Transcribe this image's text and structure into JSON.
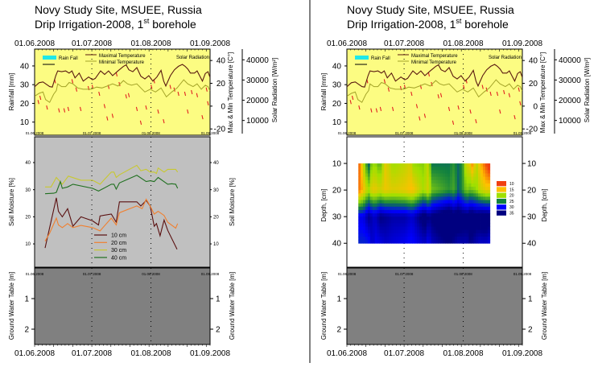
{
  "header": {
    "title_line1": "Novy Study Site, MSUEE, Russia",
    "title_line2_main": "Drip Irrigation-2008, 1",
    "title_line2_sup": "st",
    "title_line2_end": " borehole"
  },
  "colors": {
    "weather_bg": "#fcfc82",
    "soil_bg": "#c0c0c0",
    "ground_bg": "#808080",
    "max_temp": "#5a1a10",
    "min_temp": "#a4a428",
    "solar": "#e02020",
    "rain": "#20e8e8",
    "sm10": "#5a1010",
    "sm20": "#f08030",
    "sm30": "#c8c830",
    "sm40": "#207020"
  },
  "x_axis": {
    "ticks": [
      "01.06.2008",
      "01.07.2008",
      "01.08.2008",
      "01.09.2008"
    ],
    "tick_days": [
      0,
      30,
      61,
      92
    ],
    "range_days": [
      0,
      92
    ]
  },
  "chart_data": [
    {
      "id": "weather",
      "type": "line",
      "title": "Novy Study Site, MSUEE, Russia — Drip Irrigation-2008, 1st borehole",
      "xlabel": "",
      "axes": {
        "rainfall": {
          "label": "Rainfall [mm]",
          "ticks": [
            10,
            20,
            30,
            40
          ],
          "range": [
            3,
            49
          ]
        },
        "temperature": {
          "label": "Max & Min Temperature [C°]",
          "ticks": [
            -20,
            0,
            20,
            40
          ],
          "range": [
            -25.5,
            50
          ]
        },
        "solar": {
          "label": "Solar Radiation [W/m²]",
          "ticks": [
            10000,
            20000,
            30000,
            40000
          ],
          "range": [
            2700,
            45300
          ]
        }
      },
      "legend": {
        "rain": "Rain Fall",
        "max": "Maximal Temperature",
        "min": "Minimal Temperature",
        "solar": "Solar Radiation"
      },
      "series": [
        {
          "name": "Maximal Temperature",
          "axis": "temperature",
          "day": [
            0.1,
            2.3,
            4.4,
            7.9,
            9.3,
            11.1,
            12.1,
            14.2,
            16.3,
            18.1,
            19.6,
            21.2,
            23.4,
            25.5,
            28.3,
            30.4,
            31.8,
            34.6,
            36.7,
            38.8,
            40.9,
            43.7,
            46.6,
            48,
            49.4,
            51.5,
            53.6,
            55.7,
            57.8,
            59.9,
            62,
            64.1,
            66.3,
            67.7,
            68.8,
            71.2,
            73.3,
            75.4,
            77.5,
            78.9,
            80.3,
            81.7,
            83.8,
            85.2,
            88,
            89.5,
            90.9,
            91.9
          ],
          "values": [
            17.1,
            20.5,
            21.2,
            17.1,
            16.7,
            26.7,
            30.9,
            30.2,
            30.9,
            29,
            30.9,
            24.8,
            29,
            21.9,
            25.5,
            23.1,
            24.3,
            30.9,
            27.8,
            30.9,
            26.7,
            30.9,
            34.9,
            36.2,
            31.9,
            30.2,
            33.8,
            26.2,
            23.8,
            26.7,
            21.9,
            25.5,
            31.4,
            21.9,
            17.6,
            26.7,
            31.9,
            34.9,
            36.6,
            34.9,
            32.6,
            29,
            29,
            30.9,
            21.9,
            28.6,
            30.2,
            25.5
          ]
        },
        {
          "name": "Minimal Temperature",
          "axis": "temperature",
          "day": [
            0.1,
            2.3,
            4.4,
            5.8,
            7.9,
            10,
            11.4,
            12.1,
            14.2,
            16.3,
            18.1,
            20.1,
            22.6,
            25.5,
            29.7,
            32.5,
            35.3,
            38.1,
            40.9,
            43.7,
            46.6,
            48.7,
            50.8,
            53.6,
            55.7,
            57.8,
            60.6,
            63.4,
            66.3,
            69.1,
            71.9,
            74.7,
            78.2,
            80.3,
            83.1,
            85.2,
            87.4,
            89.5,
            90.9,
            91.9
          ],
          "values": [
            8.8,
            11.2,
            12.4,
            5.7,
            3.3,
            10.5,
            13.6,
            19.5,
            17.1,
            17.1,
            20.7,
            19.5,
            15.9,
            14.8,
            14.8,
            16.7,
            15.9,
            17.6,
            19.5,
            17.6,
            22.4,
            19.5,
            18.3,
            19.5,
            15.9,
            12.4,
            14.8,
            12.4,
            15.9,
            8.1,
            12.4,
            15.9,
            23.1,
            19.5,
            17.1,
            19.5,
            14.8,
            18.3,
            17.1,
            13.6
          ]
        },
        {
          "name": "Solar Radiation",
          "axis": "solar",
          "style": "dash",
          "day": [
            2,
            3,
            6.5,
            10.7,
            12.8,
            15.6,
            17.7,
            19.8,
            21.9,
            24.1,
            28.3,
            30.4,
            33.9,
            36.7,
            38.1,
            38.8,
            40.9,
            43,
            44.5,
            48,
            49.4,
            53.6,
            55.7,
            58.5,
            61.3,
            62.7,
            64.8,
            67.7,
            71.2,
            73.3,
            75.4,
            78.9,
            80.3,
            82.4,
            85.2,
            88,
            90.2,
            90.9
          ],
          "values": [
            19100,
            21200,
            16400,
            29400,
            15000,
            15000,
            15700,
            29400,
            25300,
            15700,
            26000,
            26600,
            23200,
            17100,
            11000,
            26600,
            12300,
            32800,
            28000,
            21900,
            22500,
            15700,
            8900,
            16400,
            26600,
            29400,
            14400,
            9600,
            26600,
            25300,
            23200,
            23200,
            14400,
            24000,
            22500,
            11600,
            25300,
            18500
          ]
        }
      ]
    },
    {
      "id": "soil_moisture",
      "type": "line",
      "ylabel": "Soil Moisture [%]",
      "yticks": [
        10,
        20,
        30,
        40
      ],
      "ylim": [
        1.4,
        49.5
      ],
      "legend_placement": "bottom-center",
      "series": [
        {
          "name": "10 cm",
          "color_key": "sm10",
          "day": [
            5.5,
            11.4,
            12.5,
            14.5,
            17.3,
            20.1,
            24.3,
            30.4,
            33.5,
            34.3,
            40.2,
            42.8,
            44.5,
            53.6,
            55.7,
            58.5,
            60.6,
            62.7,
            63.9,
            65.8,
            67.9,
            69.8,
            74.7
          ],
          "values": [
            8.5,
            27,
            22,
            20,
            23,
            16.5,
            20,
            18.5,
            17,
            20.3,
            21,
            18,
            25.5,
            25.5,
            24,
            26,
            24,
            16.5,
            17.5,
            13,
            18.8,
            15,
            8
          ]
        },
        {
          "name": "20 cm",
          "color_key": "sm20",
          "day": [
            5.5,
            7.9,
            11.4,
            12.5,
            14.5,
            17.3,
            20.1,
            24.3,
            30.4,
            34.3,
            40.2,
            42.8,
            44.5,
            53.6,
            56.4,
            58.5,
            60.6,
            62.7,
            64.8,
            67.9,
            69.8,
            74,
            75
          ],
          "values": [
            11,
            14,
            19.5,
            17,
            16,
            17.5,
            16,
            16.8,
            16,
            14.8,
            19.5,
            17,
            21.5,
            24,
            23,
            26.5,
            24,
            21,
            22,
            20.5,
            18,
            15.8,
            17.5
          ]
        },
        {
          "name": "30 cm",
          "color_key": "sm30",
          "day": [
            5.5,
            8.6,
            11.4,
            14.5,
            17.7,
            24.3,
            30.4,
            34.3,
            40.2,
            41.6,
            42.8,
            44.5,
            53.6,
            55.7,
            58.5,
            60.6,
            62.7,
            63.9,
            64.8,
            67.9,
            69.8,
            74,
            75
          ],
          "values": [
            31,
            31,
            34.5,
            32,
            35,
            33.5,
            33.5,
            32,
            36.5,
            36.5,
            34.5,
            35.5,
            39,
            37,
            37.5,
            36.5,
            36.5,
            36,
            38,
            36.5,
            37.5,
            37.5,
            36.5
          ]
        },
        {
          "name": "40 cm",
          "color_key": "sm40",
          "day": [
            5.5,
            10,
            11.4,
            13.5,
            14.5,
            17.3,
            20.1,
            30.4,
            33.5,
            40.2,
            41.6,
            42.8,
            44.5,
            53.6,
            58.5,
            60.6,
            62.7,
            64.8,
            69.8,
            71.9,
            74,
            75
          ],
          "values": [
            28.5,
            28.7,
            29,
            33,
            30.5,
            31,
            32,
            30.5,
            29.5,
            32,
            32,
            30.2,
            32.5,
            35.3,
            33,
            33.3,
            33,
            34.5,
            32,
            32.2,
            32,
            30.5
          ]
        }
      ]
    },
    {
      "id": "depth_contour",
      "type": "heatmap",
      "ylabel": "Depth, [cm]",
      "yticks": [
        10,
        20,
        30,
        40
      ],
      "ylim": [
        0,
        49
      ],
      "depths": [
        10,
        20,
        30,
        40
      ],
      "day_range": [
        6,
        75
      ],
      "source": "soil moisture series interpolated over depth",
      "legend": {
        "levels": [
          "10",
          "15",
          "20",
          "25",
          "30",
          "35"
        ],
        "colors": [
          "#f04010",
          "#ffc000",
          "#a0e000",
          "#108040",
          "#0000ff",
          "#000080"
        ]
      }
    },
    {
      "id": "ground_water",
      "type": "line",
      "ylabel": "Ground Water Table [m]",
      "yticks": [
        "1",
        "2"
      ],
      "ylim": [
        0,
        2.5
      ],
      "series": []
    }
  ]
}
